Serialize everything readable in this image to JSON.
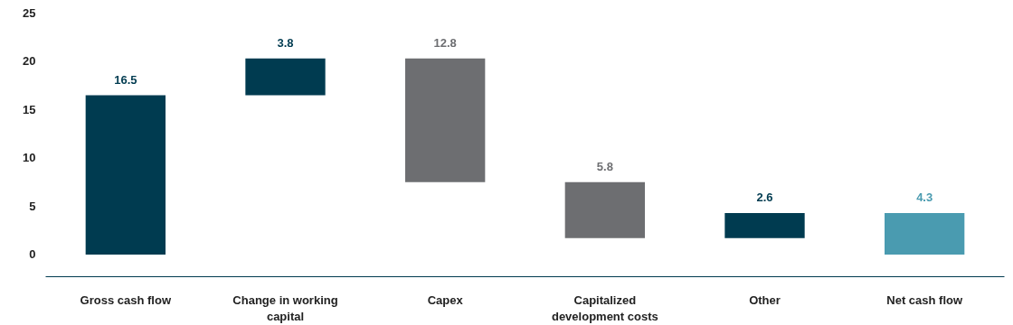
{
  "chart_data": {
    "type": "bar",
    "categories": [
      "Gross cash flow",
      "Change in working capital",
      "Capex",
      "Capitalized development costs",
      "Other",
      "Net cash flow"
    ],
    "values": [
      16.5,
      3.8,
      12.8,
      5.8,
      2.6,
      4.3
    ],
    "base": [
      0,
      16.5,
      7.5,
      1.7,
      1.7,
      0
    ],
    "colors": [
      "#003b50",
      "#003b50",
      "#6d6e71",
      "#6d6e71",
      "#003b50",
      "#4a9bb0"
    ],
    "ylim": [
      -2.3,
      25
    ],
    "yticks": [
      0,
      5,
      10,
      15,
      20,
      25
    ],
    "data_labels": true,
    "grid": false
  }
}
